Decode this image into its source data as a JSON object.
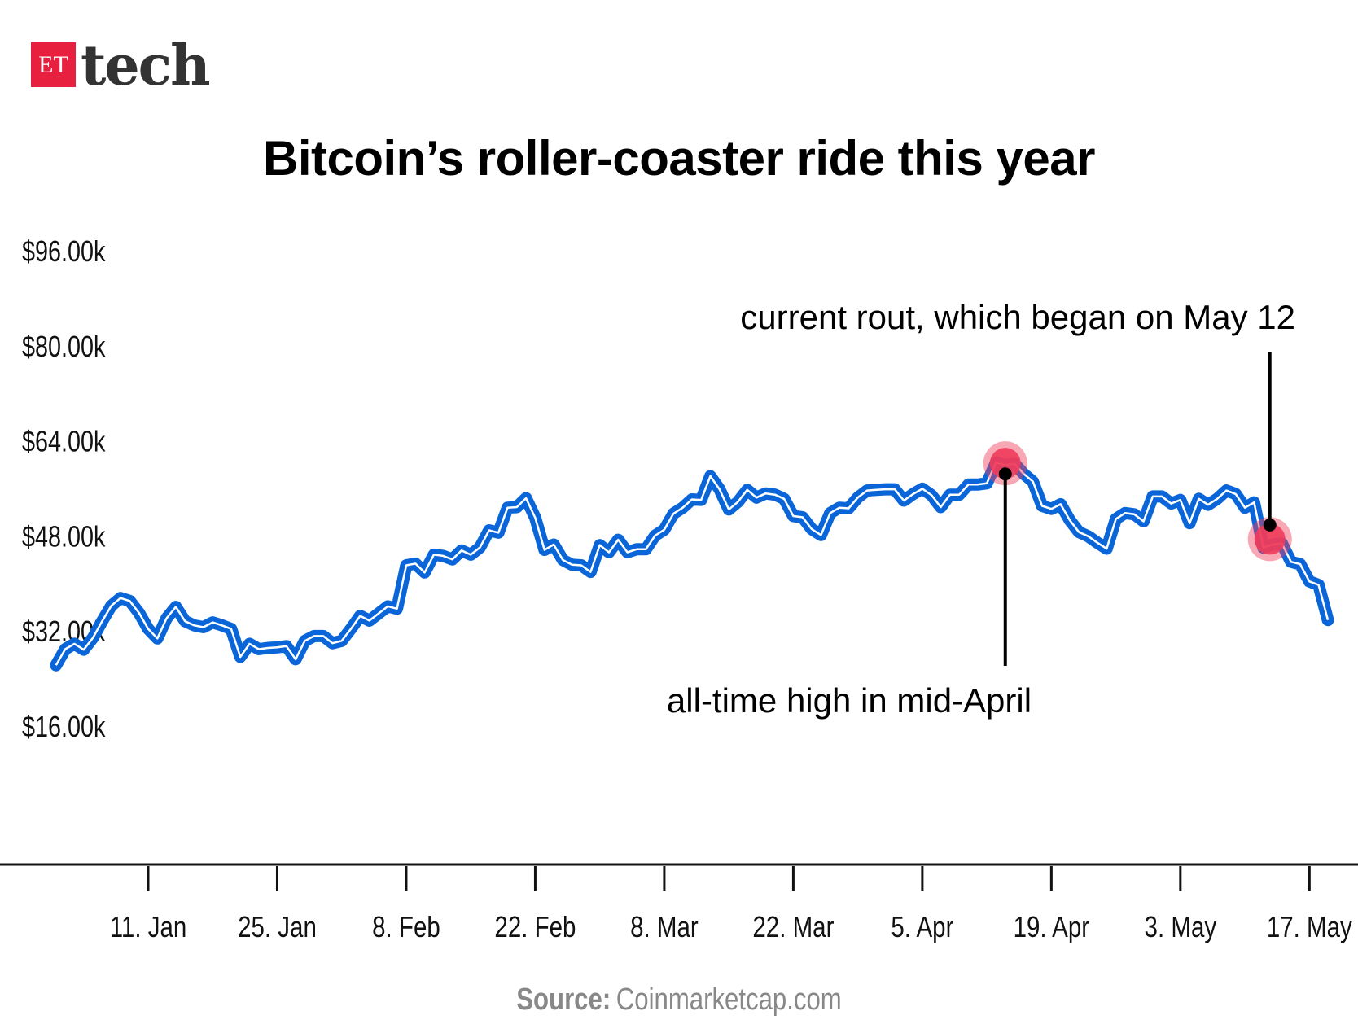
{
  "logo": {
    "badge": "ET",
    "word": "tech",
    "badge_color": "#e8203f"
  },
  "chart_data": {
    "type": "line",
    "title": "Bitcoin’s roller-coaster ride this year",
    "source_label": "Source:",
    "source_value": "Coinmarketcap.com",
    "xlabel": "",
    "ylabel": "",
    "ylim": [
      16,
      96
    ],
    "yticks": [
      16,
      32,
      48,
      64,
      80,
      96
    ],
    "ytick_labels": [
      "$16.00k",
      "$32.00k",
      "$48.00k",
      "$64.00k",
      "$80.00k",
      "$96.00k"
    ],
    "xtick_labels": [
      "11. Jan",
      "25. Jan",
      "8. Feb",
      "22. Feb",
      "8. Mar",
      "22. Mar",
      "5. Apr",
      "19. Apr",
      "3. May",
      "17. May"
    ],
    "xtick_dates": [
      "Jan 11",
      "Jan 25",
      "Feb 8",
      "Feb 22",
      "Mar 8",
      "Mar 22",
      "Apr 5",
      "Apr 19",
      "May 3",
      "May 17"
    ],
    "grid": true,
    "line_color": "#0a66d8",
    "highlight_color": "#f03c5a",
    "units": "thousand USD",
    "x": [
      "Jan 1",
      "Jan 2",
      "Jan 3",
      "Jan 4",
      "Jan 5",
      "Jan 6",
      "Jan 7",
      "Jan 8",
      "Jan 9",
      "Jan 10",
      "Jan 11",
      "Jan 12",
      "Jan 13",
      "Jan 14",
      "Jan 15",
      "Jan 16",
      "Jan 17",
      "Jan 18",
      "Jan 19",
      "Jan 20",
      "Jan 21",
      "Jan 22",
      "Jan 23",
      "Jan 24",
      "Jan 25",
      "Jan 26",
      "Jan 27",
      "Jan 28",
      "Jan 29",
      "Jan 30",
      "Jan 31",
      "Feb 1",
      "Feb 2",
      "Feb 3",
      "Feb 4",
      "Feb 5",
      "Feb 6",
      "Feb 7",
      "Feb 8",
      "Feb 9",
      "Feb 10",
      "Feb 11",
      "Feb 12",
      "Feb 13",
      "Feb 14",
      "Feb 15",
      "Feb 16",
      "Feb 17",
      "Feb 18",
      "Feb 19",
      "Feb 20",
      "Feb 21",
      "Feb 22",
      "Feb 23",
      "Feb 24",
      "Feb 25",
      "Feb 26",
      "Feb 27",
      "Feb 28",
      "Mar 1",
      "Mar 2",
      "Mar 3",
      "Mar 4",
      "Mar 5",
      "Mar 6",
      "Mar 7",
      "Mar 8",
      "Mar 9",
      "Mar 10",
      "Mar 11",
      "Mar 12",
      "Mar 13",
      "Mar 14",
      "Mar 15",
      "Mar 16",
      "Mar 17",
      "Mar 18",
      "Mar 19",
      "Mar 20",
      "Mar 21",
      "Mar 22",
      "Mar 23",
      "Mar 24",
      "Mar 25",
      "Mar 26",
      "Mar 27",
      "Mar 28",
      "Mar 29",
      "Mar 30",
      "Mar 31",
      "Apr 1",
      "Apr 2",
      "Apr 3",
      "Apr 4",
      "Apr 5",
      "Apr 6",
      "Apr 7",
      "Apr 8",
      "Apr 9",
      "Apr 10",
      "Apr 11",
      "Apr 12",
      "Apr 13",
      "Apr 14",
      "Apr 15",
      "Apr 16",
      "Apr 17",
      "Apr 18",
      "Apr 19",
      "Apr 20",
      "Apr 21",
      "Apr 22",
      "Apr 23",
      "Apr 24",
      "Apr 25",
      "Apr 26",
      "Apr 27",
      "Apr 28",
      "Apr 29",
      "Apr 30",
      "May 1",
      "May 2",
      "May 3",
      "May 4",
      "May 5",
      "May 6",
      "May 7",
      "May 8",
      "May 9",
      "May 10",
      "May 11",
      "May 12",
      "May 13",
      "May 14",
      "May 15",
      "May 16",
      "May 17",
      "May 18",
      "May 19"
    ],
    "values": [
      29.4,
      32.1,
      33.0,
      32.0,
      34.0,
      36.8,
      39.4,
      40.7,
      40.2,
      38.2,
      35.5,
      33.9,
      37.3,
      39.2,
      36.8,
      36.1,
      35.8,
      36.6,
      36.1,
      35.5,
      30.8,
      33.0,
      32.1,
      32.3,
      32.4,
      32.6,
      30.4,
      33.5,
      34.3,
      34.3,
      33.1,
      33.5,
      35.5,
      37.7,
      36.9,
      38.1,
      39.3,
      38.9,
      46.2,
      46.5,
      45.0,
      48.0,
      47.8,
      47.2,
      48.7,
      48.0,
      49.2,
      52.1,
      51.7,
      55.9,
      56.0,
      57.5,
      54.2,
      48.8,
      49.7,
      47.1,
      46.3,
      46.2,
      45.1,
      49.6,
      48.4,
      50.5,
      48.4,
      48.9,
      48.9,
      51.2,
      52.2,
      54.9,
      55.9,
      57.3,
      57.2,
      61.2,
      59.0,
      55.6,
      56.9,
      58.9,
      57.6,
      58.3,
      58.1,
      57.4,
      54.5,
      54.3,
      52.3,
      51.3,
      55.0,
      55.9,
      55.8,
      57.6,
      58.8,
      58.9,
      59.0,
      59.0,
      57.1,
      58.2,
      59.1,
      58.0,
      56.0,
      58.1,
      58.1,
      59.8,
      59.8,
      60.0,
      63.5,
      63.1,
      63.3,
      61.6,
      60.3,
      56.2,
      55.7,
      56.5,
      53.8,
      51.8,
      51.1,
      50.0,
      49.0,
      54.0,
      55.0,
      54.8,
      53.6,
      57.8,
      57.8,
      56.6,
      57.2,
      53.3,
      57.4,
      56.4,
      57.4,
      58.8,
      58.2,
      55.9,
      56.8,
      49.2,
      49.7,
      49.9,
      46.8,
      46.4,
      43.5,
      42.9,
      37.0
    ],
    "annotations": [
      {
        "text": "all-time high in mid-April",
        "date": "Apr 14",
        "value": 63.5
      },
      {
        "text": "current rout, which began on May 12",
        "date": "May 12",
        "value": 53.0
      }
    ]
  }
}
